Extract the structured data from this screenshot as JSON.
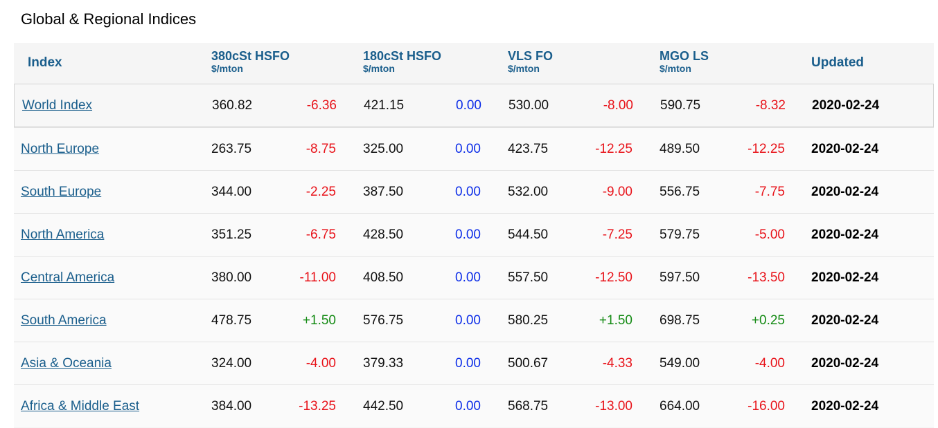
{
  "title": "Global & Regional Indices",
  "headers": {
    "index": "Index",
    "hsfo380": {
      "name": "380cSt HSFO",
      "unit": "$/mton"
    },
    "hsfo180": {
      "name": "180cSt HSFO",
      "unit": "$/mton"
    },
    "vlsfo": {
      "name": "VLS FO",
      "unit": "$/mton"
    },
    "mgols": {
      "name": "MGO LS",
      "unit": "$/mton"
    },
    "updated": "Updated"
  },
  "rows": [
    {
      "name": "World Index",
      "hsfo380": "360.82",
      "hsfo380_chg": "-6.36",
      "hsfo180": "421.15",
      "hsfo180_chg": "0.00",
      "vlsfo": "530.00",
      "vlsfo_chg": "-8.00",
      "mgols": "590.75",
      "mgols_chg": "-8.32",
      "updated": "2020-02-24"
    },
    {
      "name": "North Europe",
      "hsfo380": "263.75",
      "hsfo380_chg": "-8.75",
      "hsfo180": "325.00",
      "hsfo180_chg": "0.00",
      "vlsfo": "423.75",
      "vlsfo_chg": "-12.25",
      "mgols": "489.50",
      "mgols_chg": "-12.25",
      "updated": "2020-02-24"
    },
    {
      "name": "South Europe",
      "hsfo380": "344.00",
      "hsfo380_chg": "-2.25",
      "hsfo180": "387.50",
      "hsfo180_chg": "0.00",
      "vlsfo": "532.00",
      "vlsfo_chg": "-9.00",
      "mgols": "556.75",
      "mgols_chg": "-7.75",
      "updated": "2020-02-24"
    },
    {
      "name": "North America",
      "hsfo380": "351.25",
      "hsfo380_chg": "-6.75",
      "hsfo180": "428.50",
      "hsfo180_chg": "0.00",
      "vlsfo": "544.50",
      "vlsfo_chg": "-7.25",
      "mgols": "579.75",
      "mgols_chg": "-5.00",
      "updated": "2020-02-24"
    },
    {
      "name": "Central America",
      "hsfo380": "380.00",
      "hsfo380_chg": "-11.00",
      "hsfo180": "408.50",
      "hsfo180_chg": "0.00",
      "vlsfo": "557.50",
      "vlsfo_chg": "-12.50",
      "mgols": "597.50",
      "mgols_chg": "-13.50",
      "updated": "2020-02-24"
    },
    {
      "name": "South America",
      "hsfo380": "478.75",
      "hsfo380_chg": "+1.50",
      "hsfo180": "576.75",
      "hsfo180_chg": "0.00",
      "vlsfo": "580.25",
      "vlsfo_chg": "+1.50",
      "mgols": "698.75",
      "mgols_chg": "+0.25",
      "updated": "2020-02-24"
    },
    {
      "name": "Asia & Oceania",
      "hsfo380": "324.00",
      "hsfo380_chg": "-4.00",
      "hsfo180": "379.33",
      "hsfo180_chg": "0.00",
      "vlsfo": "500.67",
      "vlsfo_chg": "-4.33",
      "mgols": "549.00",
      "mgols_chg": "-4.00",
      "updated": "2020-02-24"
    },
    {
      "name": "Africa & Middle East",
      "hsfo380": "384.00",
      "hsfo380_chg": "-13.25",
      "hsfo180": "442.50",
      "hsfo180_chg": "0.00",
      "vlsfo": "568.75",
      "vlsfo_chg": "-13.00",
      "mgols": "664.00",
      "mgols_chg": "-16.00",
      "updated": "2020-02-24"
    }
  ],
  "colors": {
    "negative": "#e8131a",
    "zero": "#0d2ee8",
    "positive": "#138a13",
    "link": "#1a5e8c"
  }
}
